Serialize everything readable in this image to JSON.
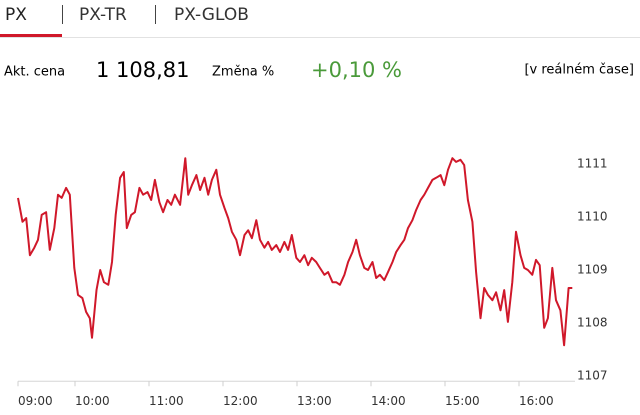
{
  "tabs": [
    "PX",
    "PX-TR",
    "PX-GLOB"
  ],
  "info": {
    "price_label": "Akt. cena",
    "price": "1 108,81",
    "change_label": "Změna %",
    "change": "+0,10 %",
    "realtime": "[v reálném čase]"
  },
  "chart_data": {
    "type": "line",
    "color": "#d0182a",
    "x": [
      9.23,
      9.29,
      9.34,
      9.39,
      9.45,
      9.5,
      9.55,
      9.61,
      9.66,
      9.72,
      9.77,
      9.82,
      9.88,
      9.93,
      9.99,
      10.04,
      10.1,
      10.15,
      10.2,
      10.23,
      10.29,
      10.34,
      10.39,
      10.45,
      10.5,
      10.55,
      10.61,
      10.66,
      10.7,
      10.76,
      10.81,
      10.87,
      10.92,
      10.98,
      11.03,
      11.08,
      11.14,
      11.19,
      11.25,
      11.3,
      11.35,
      11.42,
      11.49,
      11.53,
      11.58,
      11.64,
      11.69,
      11.75,
      11.8,
      11.85,
      11.91,
      11.96,
      12.02,
      12.07,
      12.12,
      12.18,
      12.23,
      12.29,
      12.34,
      12.39,
      12.45,
      12.5,
      12.56,
      12.61,
      12.66,
      12.72,
      12.77,
      12.83,
      12.88,
      12.93,
      12.99,
      13.04,
      13.1,
      13.15,
      13.2,
      13.26,
      13.31,
      13.37,
      13.42,
      13.48,
      13.53,
      13.58,
      13.64,
      13.69,
      13.75,
      13.8,
      13.85,
      13.91,
      13.96,
      14.02,
      14.07,
      14.12,
      14.18,
      14.23,
      14.29,
      14.34,
      14.4,
      14.45,
      14.5,
      14.56,
      14.61,
      14.67,
      14.72,
      14.77,
      14.83,
      14.88,
      14.94,
      14.99,
      15.04,
      15.1,
      15.15,
      15.21,
      15.26,
      15.31,
      15.37,
      15.42,
      15.48,
      15.53,
      15.58,
      15.64,
      15.69,
      15.75,
      15.8,
      15.85,
      15.91,
      15.96,
      16.02,
      16.07,
      16.12,
      16.18,
      16.23,
      16.28,
      16.34,
      16.39,
      16.45,
      16.5,
      16.56,
      16.61,
      16.67,
      16.72
    ],
    "values": [
      1110.36,
      1109.91,
      1109.98,
      1109.28,
      1109.42,
      1109.57,
      1110.04,
      1110.09,
      1109.38,
      1109.79,
      1110.42,
      1110.36,
      1110.55,
      1110.42,
      1109.04,
      1108.53,
      1108.47,
      1108.21,
      1108.09,
      1107.72,
      1108.62,
      1109.0,
      1108.77,
      1108.72,
      1109.15,
      1110.04,
      1110.74,
      1110.85,
      1109.79,
      1110.04,
      1110.09,
      1110.55,
      1110.42,
      1110.47,
      1110.32,
      1110.7,
      1110.28,
      1110.09,
      1110.32,
      1110.23,
      1110.42,
      1110.23,
      1111.11,
      1110.42,
      1110.6,
      1110.79,
      1110.51,
      1110.74,
      1110.42,
      1110.7,
      1110.89,
      1110.42,
      1110.17,
      1109.98,
      1109.72,
      1109.57,
      1109.28,
      1109.66,
      1109.75,
      1109.6,
      1109.94,
      1109.57,
      1109.42,
      1109.53,
      1109.38,
      1109.47,
      1109.34,
      1109.53,
      1109.38,
      1109.66,
      1109.23,
      1109.15,
      1109.28,
      1109.09,
      1109.23,
      1109.15,
      1109.04,
      1108.91,
      1108.96,
      1108.77,
      1108.77,
      1108.72,
      1108.91,
      1109.15,
      1109.34,
      1109.57,
      1109.28,
      1109.04,
      1109.0,
      1109.15,
      1108.85,
      1108.91,
      1108.81,
      1108.96,
      1109.15,
      1109.34,
      1109.47,
      1109.57,
      1109.79,
      1109.94,
      1110.13,
      1110.32,
      1110.42,
      1110.55,
      1110.7,
      1110.74,
      1110.79,
      1110.6,
      1110.89,
      1111.11,
      1111.04,
      1111.08,
      1110.98,
      1110.32,
      1109.91,
      1108.96,
      1108.09,
      1108.66,
      1108.53,
      1108.43,
      1108.58,
      1108.24,
      1108.62,
      1108.02,
      1108.77,
      1109.72,
      1109.28,
      1109.04,
      1109.0,
      1108.91,
      1109.19,
      1109.09,
      1107.91,
      1108.09,
      1109.04,
      1108.43,
      1108.24,
      1107.58,
      1108.66,
      1108.66
    ],
    "xlim": [
      9,
      16.8
    ],
    "xticks": [
      {
        "value": 9,
        "label": "09:00"
      },
      {
        "value": 10,
        "label": "10:00"
      },
      {
        "value": 11,
        "label": "11:00"
      },
      {
        "value": 12,
        "label": "12:00"
      },
      {
        "value": 13,
        "label": "13:00"
      },
      {
        "value": 14,
        "label": "14:00"
      },
      {
        "value": 15,
        "label": "15:00"
      },
      {
        "value": 16,
        "label": "16:00"
      }
    ],
    "ylim": [
      1106.9,
      1111.3
    ],
    "yticks": [
      1107,
      1108,
      1109,
      1110,
      1111
    ]
  }
}
